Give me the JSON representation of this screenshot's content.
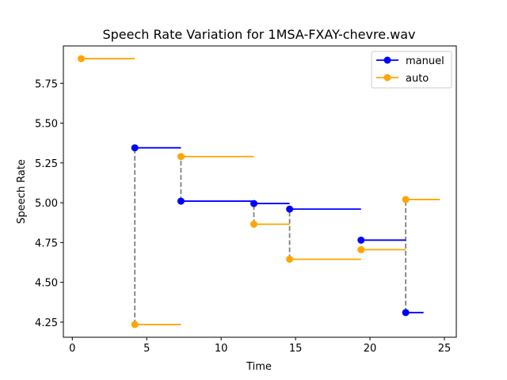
{
  "chart_data": {
    "type": "line",
    "title": "Speech Rate Variation for 1MSA-FXAY-chevre.wav",
    "xlabel": "Time",
    "ylabel": "Speech Rate",
    "xlim": [
      -0.6,
      25.8
    ],
    "ylim": [
      4.155,
      5.985
    ],
    "xticks": [
      0,
      5,
      10,
      15,
      20,
      25
    ],
    "yticks": [
      4.25,
      4.5,
      4.75,
      5.0,
      5.25,
      5.5,
      5.75
    ],
    "ytick_labels": [
      "4.25",
      "4.50",
      "4.75",
      "5.00",
      "5.25",
      "5.50",
      "5.75"
    ],
    "grid": false,
    "legend_position": "top-right",
    "series": [
      {
        "name": "manuel",
        "color": "#0000ff",
        "segments": [
          {
            "x0": 4.2,
            "x1": 7.3,
            "y": 5.345
          },
          {
            "x0": 7.3,
            "x1": 12.2,
            "y": 5.01
          },
          {
            "x0": 12.2,
            "x1": 14.6,
            "y": 4.995
          },
          {
            "x0": 14.6,
            "x1": 19.4,
            "y": 4.96
          },
          {
            "x0": 19.4,
            "x1": 22.4,
            "y": 4.765
          },
          {
            "x0": 22.4,
            "x1": 23.6,
            "y": 4.31
          }
        ]
      },
      {
        "name": "auto",
        "color": "#ffa500",
        "segments": [
          {
            "x0": 0.6,
            "x1": 4.2,
            "y": 5.905
          },
          {
            "x0": 4.2,
            "x1": 7.3,
            "y": 4.235
          },
          {
            "x0": 7.3,
            "x1": 12.2,
            "y": 5.29
          },
          {
            "x0": 12.2,
            "x1": 14.6,
            "y": 4.865
          },
          {
            "x0": 14.6,
            "x1": 19.4,
            "y": 4.645
          },
          {
            "x0": 19.4,
            "x1": 22.4,
            "y": 4.705
          },
          {
            "x0": 22.4,
            "x1": 24.7,
            "y": 5.02
          }
        ]
      }
    ],
    "connectors": [
      {
        "x": 4.2,
        "y0": 4.235,
        "y1": 5.345
      },
      {
        "x": 7.3,
        "y0": 5.01,
        "y1": 5.29
      },
      {
        "x": 12.2,
        "y0": 4.865,
        "y1": 4.995
      },
      {
        "x": 14.6,
        "y0": 4.645,
        "y1": 4.96
      },
      {
        "x": 22.4,
        "y0": 4.31,
        "y1": 5.02
      }
    ],
    "connector_color": "#808080"
  }
}
